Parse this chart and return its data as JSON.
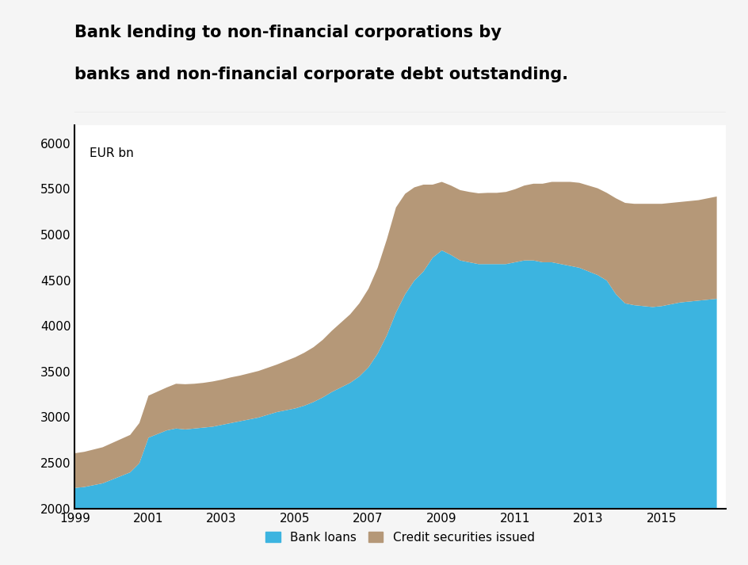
{
  "title_line1": "Bank lending to non-financial corporations by",
  "title_line2": "banks and non-financial corporate debt outstanding.",
  "ylabel_text": "EUR bn",
  "background_color": "#f5f5f5",
  "plot_bg_color": "#ffffff",
  "bank_loans_color": "#3cb4e0",
  "credit_securities_color": "#b59878",
  "ylim": [
    2000,
    6200
  ],
  "yticks": [
    2000,
    2500,
    3000,
    3500,
    4000,
    4500,
    5000,
    5500,
    6000
  ],
  "years": [
    1999.0,
    1999.25,
    1999.5,
    1999.75,
    2000.0,
    2000.25,
    2000.5,
    2000.75,
    2001.0,
    2001.25,
    2001.5,
    2001.75,
    2002.0,
    2002.25,
    2002.5,
    2002.75,
    2003.0,
    2003.25,
    2003.5,
    2003.75,
    2004.0,
    2004.25,
    2004.5,
    2004.75,
    2005.0,
    2005.25,
    2005.5,
    2005.75,
    2006.0,
    2006.25,
    2006.5,
    2006.75,
    2007.0,
    2007.25,
    2007.5,
    2007.75,
    2008.0,
    2008.25,
    2008.5,
    2008.75,
    2009.0,
    2009.25,
    2009.5,
    2009.75,
    2010.0,
    2010.25,
    2010.5,
    2010.75,
    2011.0,
    2011.25,
    2011.5,
    2011.75,
    2012.0,
    2012.25,
    2012.5,
    2012.75,
    2013.0,
    2013.25,
    2013.5,
    2013.75,
    2014.0,
    2014.25,
    2014.5,
    2014.75,
    2015.0,
    2015.25,
    2015.5,
    2015.75,
    2016.0,
    2016.25,
    2016.5
  ],
  "bank_loans": [
    2230,
    2240,
    2260,
    2280,
    2320,
    2360,
    2400,
    2500,
    2780,
    2820,
    2860,
    2880,
    2870,
    2880,
    2890,
    2900,
    2920,
    2940,
    2960,
    2980,
    3000,
    3030,
    3060,
    3080,
    3100,
    3130,
    3170,
    3220,
    3280,
    3330,
    3380,
    3450,
    3550,
    3700,
    3900,
    4150,
    4350,
    4500,
    4600,
    4750,
    4830,
    4780,
    4720,
    4700,
    4680,
    4680,
    4680,
    4680,
    4700,
    4720,
    4720,
    4700,
    4700,
    4680,
    4660,
    4640,
    4600,
    4560,
    4500,
    4350,
    4250,
    4230,
    4220,
    4210,
    4220,
    4240,
    4260,
    4270,
    4280,
    4290,
    4300
  ],
  "credit_securities": [
    380,
    385,
    390,
    395,
    400,
    405,
    410,
    440,
    460,
    465,
    470,
    490,
    495,
    490,
    490,
    495,
    495,
    500,
    500,
    505,
    510,
    515,
    520,
    540,
    560,
    580,
    600,
    630,
    670,
    710,
    750,
    800,
    860,
    940,
    1050,
    1150,
    1100,
    1020,
    950,
    800,
    750,
    760,
    770,
    770,
    775,
    780,
    780,
    790,
    800,
    820,
    840,
    860,
    880,
    900,
    920,
    930,
    940,
    950,
    960,
    1050,
    1100,
    1110,
    1120,
    1130,
    1120,
    1110,
    1100,
    1100,
    1100,
    1110,
    1120
  ],
  "legend_labels": [
    "Bank loans",
    "Credit securities issued"
  ],
  "xlim_start": 1999,
  "xlim_end": 2016.75,
  "xtick_years": [
    1999,
    2001,
    2003,
    2005,
    2007,
    2009,
    2011,
    2013,
    2015
  ],
  "title_separator_color": "#cccccc"
}
